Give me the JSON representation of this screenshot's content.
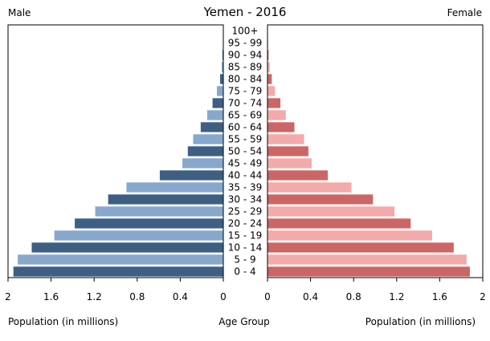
{
  "chart_data": {
    "type": "bar",
    "title": "Yemen - 2016",
    "left_label": "Male",
    "right_label": "Female",
    "xlabel_left": "Population (in millions)",
    "xlabel_center": "Age Group",
    "xlabel_right": "Population (in millions)",
    "xlim": [
      0,
      2
    ],
    "x_ticks_left": [
      "2",
      "1.6",
      "1.2",
      "0.8",
      "0.4",
      "0"
    ],
    "x_ticks_right": [
      "0",
      "0.4",
      "0.8",
      "1.2",
      "1.6",
      "2"
    ],
    "categories": [
      "0 - 4",
      "5 - 9",
      "10 - 14",
      "15 - 19",
      "20 - 24",
      "25 - 29",
      "30 - 34",
      "35 - 39",
      "40 - 44",
      "45 - 49",
      "50 - 54",
      "55 - 59",
      "60 - 64",
      "65 - 69",
      "70 - 74",
      "75 - 79",
      "80 - 84",
      "85 - 89",
      "90 - 94",
      "95 - 99",
      "100+"
    ],
    "series": [
      {
        "name": "Male",
        "values": [
          1.95,
          1.91,
          1.78,
          1.57,
          1.38,
          1.19,
          1.07,
          0.9,
          0.59,
          0.38,
          0.33,
          0.28,
          0.21,
          0.15,
          0.1,
          0.06,
          0.03,
          0.015,
          0.008,
          0.004,
          0.002
        ],
        "colors": [
          "#3e5f83",
          "#87a8cc"
        ]
      },
      {
        "name": "Female",
        "values": [
          1.88,
          1.85,
          1.73,
          1.53,
          1.33,
          1.18,
          0.98,
          0.78,
          0.56,
          0.41,
          0.38,
          0.34,
          0.25,
          0.17,
          0.12,
          0.07,
          0.04,
          0.02,
          0.01,
          0.005,
          0.002
        ],
        "colors": [
          "#cc6666",
          "#f2aaaa"
        ]
      }
    ]
  }
}
